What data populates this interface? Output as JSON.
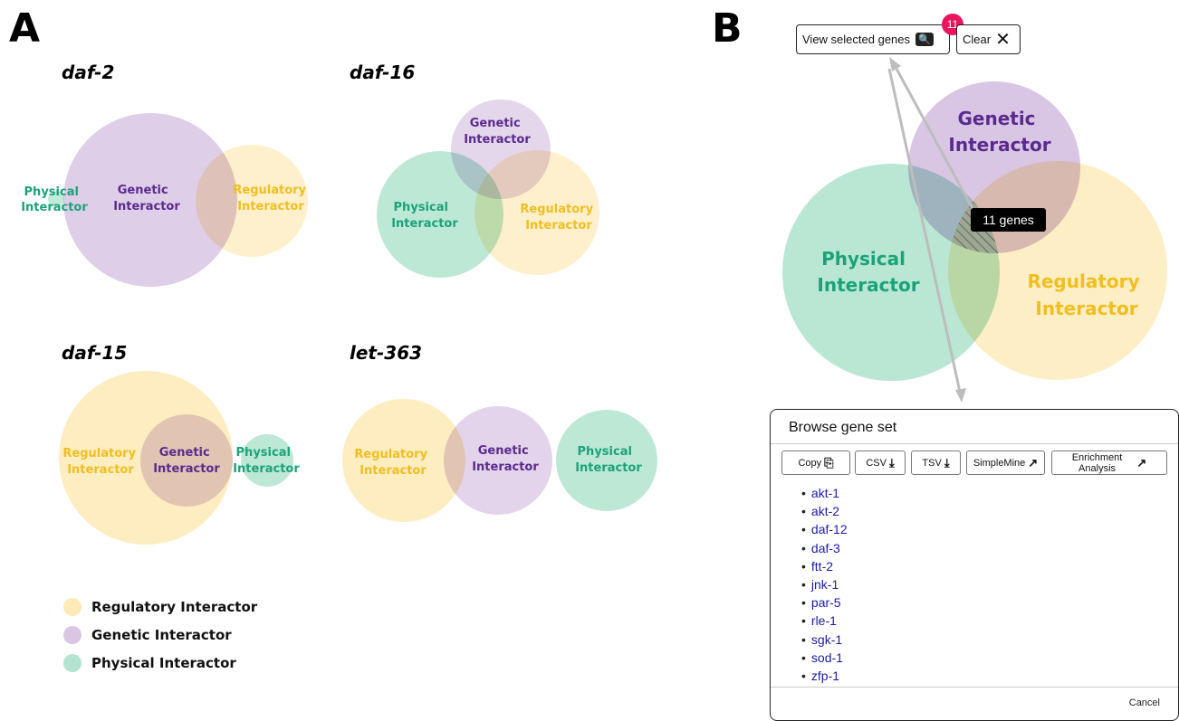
{
  "panel_a": {
    "letter": "A",
    "diagrams": [
      {
        "title": "daf-2",
        "labels": {
          "physical": [
            "Physical",
            "Interactor"
          ],
          "genetic": [
            "Genetic",
            "Interactor"
          ],
          "regulatory": [
            "Regulatory",
            "Interactor"
          ]
        }
      },
      {
        "title": "daf-16",
        "labels": {
          "genetic": [
            "Genetic",
            "Interactor"
          ],
          "physical": [
            "Physical",
            "Interactor"
          ],
          "regulatory": [
            "Regulatory",
            "Interactor"
          ]
        }
      },
      {
        "title": "daf-15",
        "labels": {
          "regulatory": [
            "Regulatory",
            "Interactor"
          ],
          "genetic": [
            "Genetic",
            "Interactor"
          ],
          "physical": [
            "Physical",
            "Interactor"
          ]
        }
      },
      {
        "title": "let-363",
        "labels": {
          "regulatory": [
            "Regulatory",
            "Interactor"
          ],
          "genetic": [
            "Genetic",
            "Interactor"
          ],
          "physical": [
            "Physical",
            "Interactor"
          ]
        }
      }
    ],
    "legend": [
      {
        "label": "Regulatory Interactor",
        "color": "#fdeab6"
      },
      {
        "label": "Genetic Interactor",
        "color": "#d9c6e4"
      },
      {
        "label": "Physical Interactor",
        "color": "#b3e4cf"
      }
    ]
  },
  "panel_b": {
    "letter": "B",
    "view_button": "View selected genes",
    "selected_count": "11",
    "clear_button": "Clear",
    "circles": {
      "genetic": [
        "Genetic",
        "Interactor"
      ],
      "physical": [
        "Physical",
        "Interactor"
      ],
      "regulatory": [
        "Regulatory",
        "Interactor"
      ]
    },
    "tooltip": "11 genes",
    "dialog": {
      "title": "Browse gene set",
      "buttons": {
        "copy": "Copy",
        "csv": "CSV",
        "tsv": "TSV",
        "simplemine": "SimpleMine",
        "enrichment": [
          "Enrichment",
          "Analysis"
        ]
      },
      "genes": [
        "akt-1",
        "akt-2",
        "daf-12",
        "daf-3",
        "ftt-2",
        "jnk-1",
        "par-5",
        "rle-1",
        "sgk-1",
        "sod-1",
        "zfp-1"
      ],
      "cancel": "Cancel"
    }
  },
  "colors": {
    "regulatory_fill": "#fdeab6",
    "regulatory_text": "#f2be1f",
    "genetic_fill": "#d9c6e4",
    "genetic_text": "#5b2a8e",
    "physical_fill": "#b3e4cf",
    "physical_text": "#1aa37a",
    "badge": "#e8175d"
  }
}
